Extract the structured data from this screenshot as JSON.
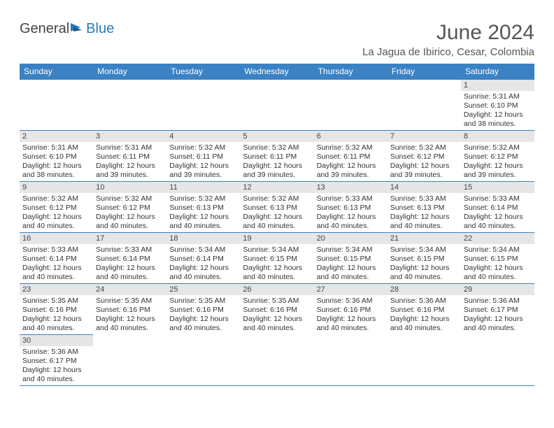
{
  "logo": {
    "text1": "General",
    "text2": "Blue",
    "icon_color": "#2a7ab8"
  },
  "title": "June 2024",
  "location": "La Jagua de Ibirico, Cesar, Colombia",
  "weekdays": [
    "Sunday",
    "Monday",
    "Tuesday",
    "Wednesday",
    "Thursday",
    "Friday",
    "Saturday"
  ],
  "header_bg": "#3a82c4",
  "daynum_bg": "#e6e6e6",
  "weeks": [
    [
      null,
      null,
      null,
      null,
      null,
      null,
      {
        "n": "1",
        "sr": "5:31 AM",
        "ss": "6:10 PM",
        "dl": "12 hours and 38 minutes."
      }
    ],
    [
      {
        "n": "2",
        "sr": "5:31 AM",
        "ss": "6:10 PM",
        "dl": "12 hours and 38 minutes."
      },
      {
        "n": "3",
        "sr": "5:31 AM",
        "ss": "6:11 PM",
        "dl": "12 hours and 39 minutes."
      },
      {
        "n": "4",
        "sr": "5:32 AM",
        "ss": "6:11 PM",
        "dl": "12 hours and 39 minutes."
      },
      {
        "n": "5",
        "sr": "5:32 AM",
        "ss": "6:11 PM",
        "dl": "12 hours and 39 minutes."
      },
      {
        "n": "6",
        "sr": "5:32 AM",
        "ss": "6:11 PM",
        "dl": "12 hours and 39 minutes."
      },
      {
        "n": "7",
        "sr": "5:32 AM",
        "ss": "6:12 PM",
        "dl": "12 hours and 39 minutes."
      },
      {
        "n": "8",
        "sr": "5:32 AM",
        "ss": "6:12 PM",
        "dl": "12 hours and 39 minutes."
      }
    ],
    [
      {
        "n": "9",
        "sr": "5:32 AM",
        "ss": "6:12 PM",
        "dl": "12 hours and 40 minutes."
      },
      {
        "n": "10",
        "sr": "5:32 AM",
        "ss": "6:12 PM",
        "dl": "12 hours and 40 minutes."
      },
      {
        "n": "11",
        "sr": "5:32 AM",
        "ss": "6:13 PM",
        "dl": "12 hours and 40 minutes."
      },
      {
        "n": "12",
        "sr": "5:32 AM",
        "ss": "6:13 PM",
        "dl": "12 hours and 40 minutes."
      },
      {
        "n": "13",
        "sr": "5:33 AM",
        "ss": "6:13 PM",
        "dl": "12 hours and 40 minutes."
      },
      {
        "n": "14",
        "sr": "5:33 AM",
        "ss": "6:13 PM",
        "dl": "12 hours and 40 minutes."
      },
      {
        "n": "15",
        "sr": "5:33 AM",
        "ss": "6:14 PM",
        "dl": "12 hours and 40 minutes."
      }
    ],
    [
      {
        "n": "16",
        "sr": "5:33 AM",
        "ss": "6:14 PM",
        "dl": "12 hours and 40 minutes."
      },
      {
        "n": "17",
        "sr": "5:33 AM",
        "ss": "6:14 PM",
        "dl": "12 hours and 40 minutes."
      },
      {
        "n": "18",
        "sr": "5:34 AM",
        "ss": "6:14 PM",
        "dl": "12 hours and 40 minutes."
      },
      {
        "n": "19",
        "sr": "5:34 AM",
        "ss": "6:15 PM",
        "dl": "12 hours and 40 minutes."
      },
      {
        "n": "20",
        "sr": "5:34 AM",
        "ss": "6:15 PM",
        "dl": "12 hours and 40 minutes."
      },
      {
        "n": "21",
        "sr": "5:34 AM",
        "ss": "6:15 PM",
        "dl": "12 hours and 40 minutes."
      },
      {
        "n": "22",
        "sr": "5:34 AM",
        "ss": "6:15 PM",
        "dl": "12 hours and 40 minutes."
      }
    ],
    [
      {
        "n": "23",
        "sr": "5:35 AM",
        "ss": "6:16 PM",
        "dl": "12 hours and 40 minutes."
      },
      {
        "n": "24",
        "sr": "5:35 AM",
        "ss": "6:16 PM",
        "dl": "12 hours and 40 minutes."
      },
      {
        "n": "25",
        "sr": "5:35 AM",
        "ss": "6:16 PM",
        "dl": "12 hours and 40 minutes."
      },
      {
        "n": "26",
        "sr": "5:35 AM",
        "ss": "6:16 PM",
        "dl": "12 hours and 40 minutes."
      },
      {
        "n": "27",
        "sr": "5:36 AM",
        "ss": "6:16 PM",
        "dl": "12 hours and 40 minutes."
      },
      {
        "n": "28",
        "sr": "5:36 AM",
        "ss": "6:16 PM",
        "dl": "12 hours and 40 minutes."
      },
      {
        "n": "29",
        "sr": "5:36 AM",
        "ss": "6:17 PM",
        "dl": "12 hours and 40 minutes."
      }
    ],
    [
      {
        "n": "30",
        "sr": "5:36 AM",
        "ss": "6:17 PM",
        "dl": "12 hours and 40 minutes."
      },
      null,
      null,
      null,
      null,
      null,
      null
    ]
  ],
  "labels": {
    "sunrise": "Sunrise:",
    "sunset": "Sunset:",
    "daylight": "Daylight:"
  }
}
